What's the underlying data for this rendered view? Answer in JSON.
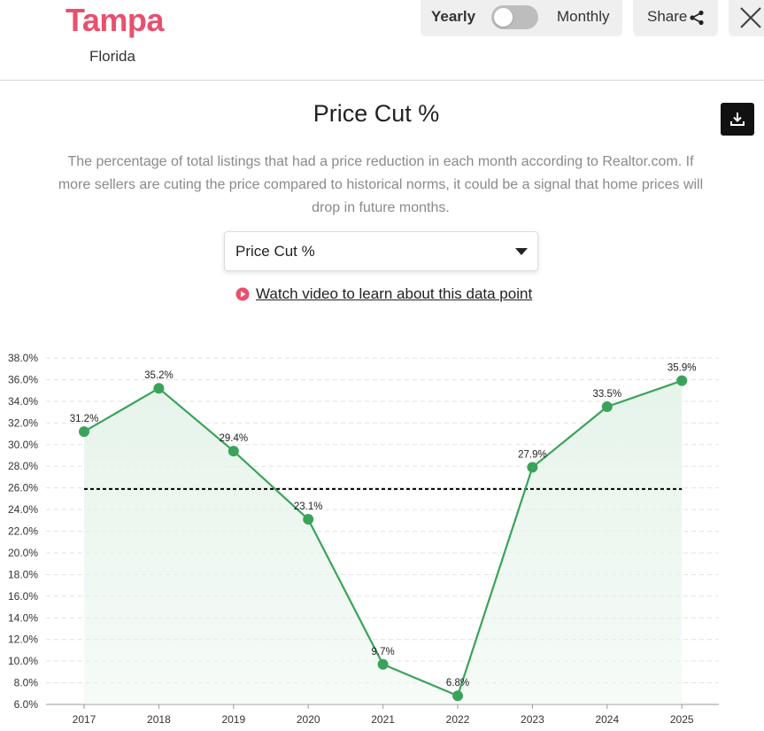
{
  "header": {
    "city": "Tampa",
    "state": "Florida",
    "toggle": {
      "left_label": "Yearly",
      "right_label": "Monthly",
      "state": "off"
    },
    "share_label": "Share"
  },
  "chart_title": "Price Cut %",
  "description": "The percentage of total listings that had a price reduction in each month according to Realtor.com. If more sellers are cuting the price compared to historical norms, it could be a signal that home prices will drop in future months.",
  "selector": {
    "value": "Price Cut %"
  },
  "video_link": "Watch video to learn about this data point",
  "colors": {
    "accent": "#e8506e",
    "line": "#3aa35a",
    "fill": "#e6f4ea",
    "reference": "#000000"
  },
  "chart_data": {
    "type": "line",
    "x": [
      "2017",
      "2018",
      "2019",
      "2020",
      "2021",
      "2022",
      "2023",
      "2024",
      "2025"
    ],
    "values": [
      31.2,
      35.2,
      29.4,
      23.1,
      9.7,
      6.8,
      27.9,
      33.5,
      35.9
    ],
    "data_labels": [
      "31.2%",
      "35.2%",
      "29.4%",
      "23.1%",
      "9.7%",
      "6.8%",
      "27.9%",
      "33.5%",
      "35.9%"
    ],
    "reference_line": 25.9,
    "ylim": [
      6,
      38
    ],
    "yticks": [
      6,
      8,
      10,
      12,
      14,
      16,
      18,
      20,
      22,
      24,
      26,
      28,
      30,
      32,
      34,
      36,
      38
    ],
    "ytick_labels": [
      "6.0%",
      "8.0%",
      "10.0%",
      "12.0%",
      "14.0%",
      "16.0%",
      "18.0%",
      "20.0%",
      "22.0%",
      "24.0%",
      "26.0%",
      "28.0%",
      "30.0%",
      "32.0%",
      "34.0%",
      "36.0%",
      "38.0%"
    ],
    "title": "",
    "xlabel": "",
    "ylabel": "",
    "grid": true,
    "area_fill": true
  }
}
